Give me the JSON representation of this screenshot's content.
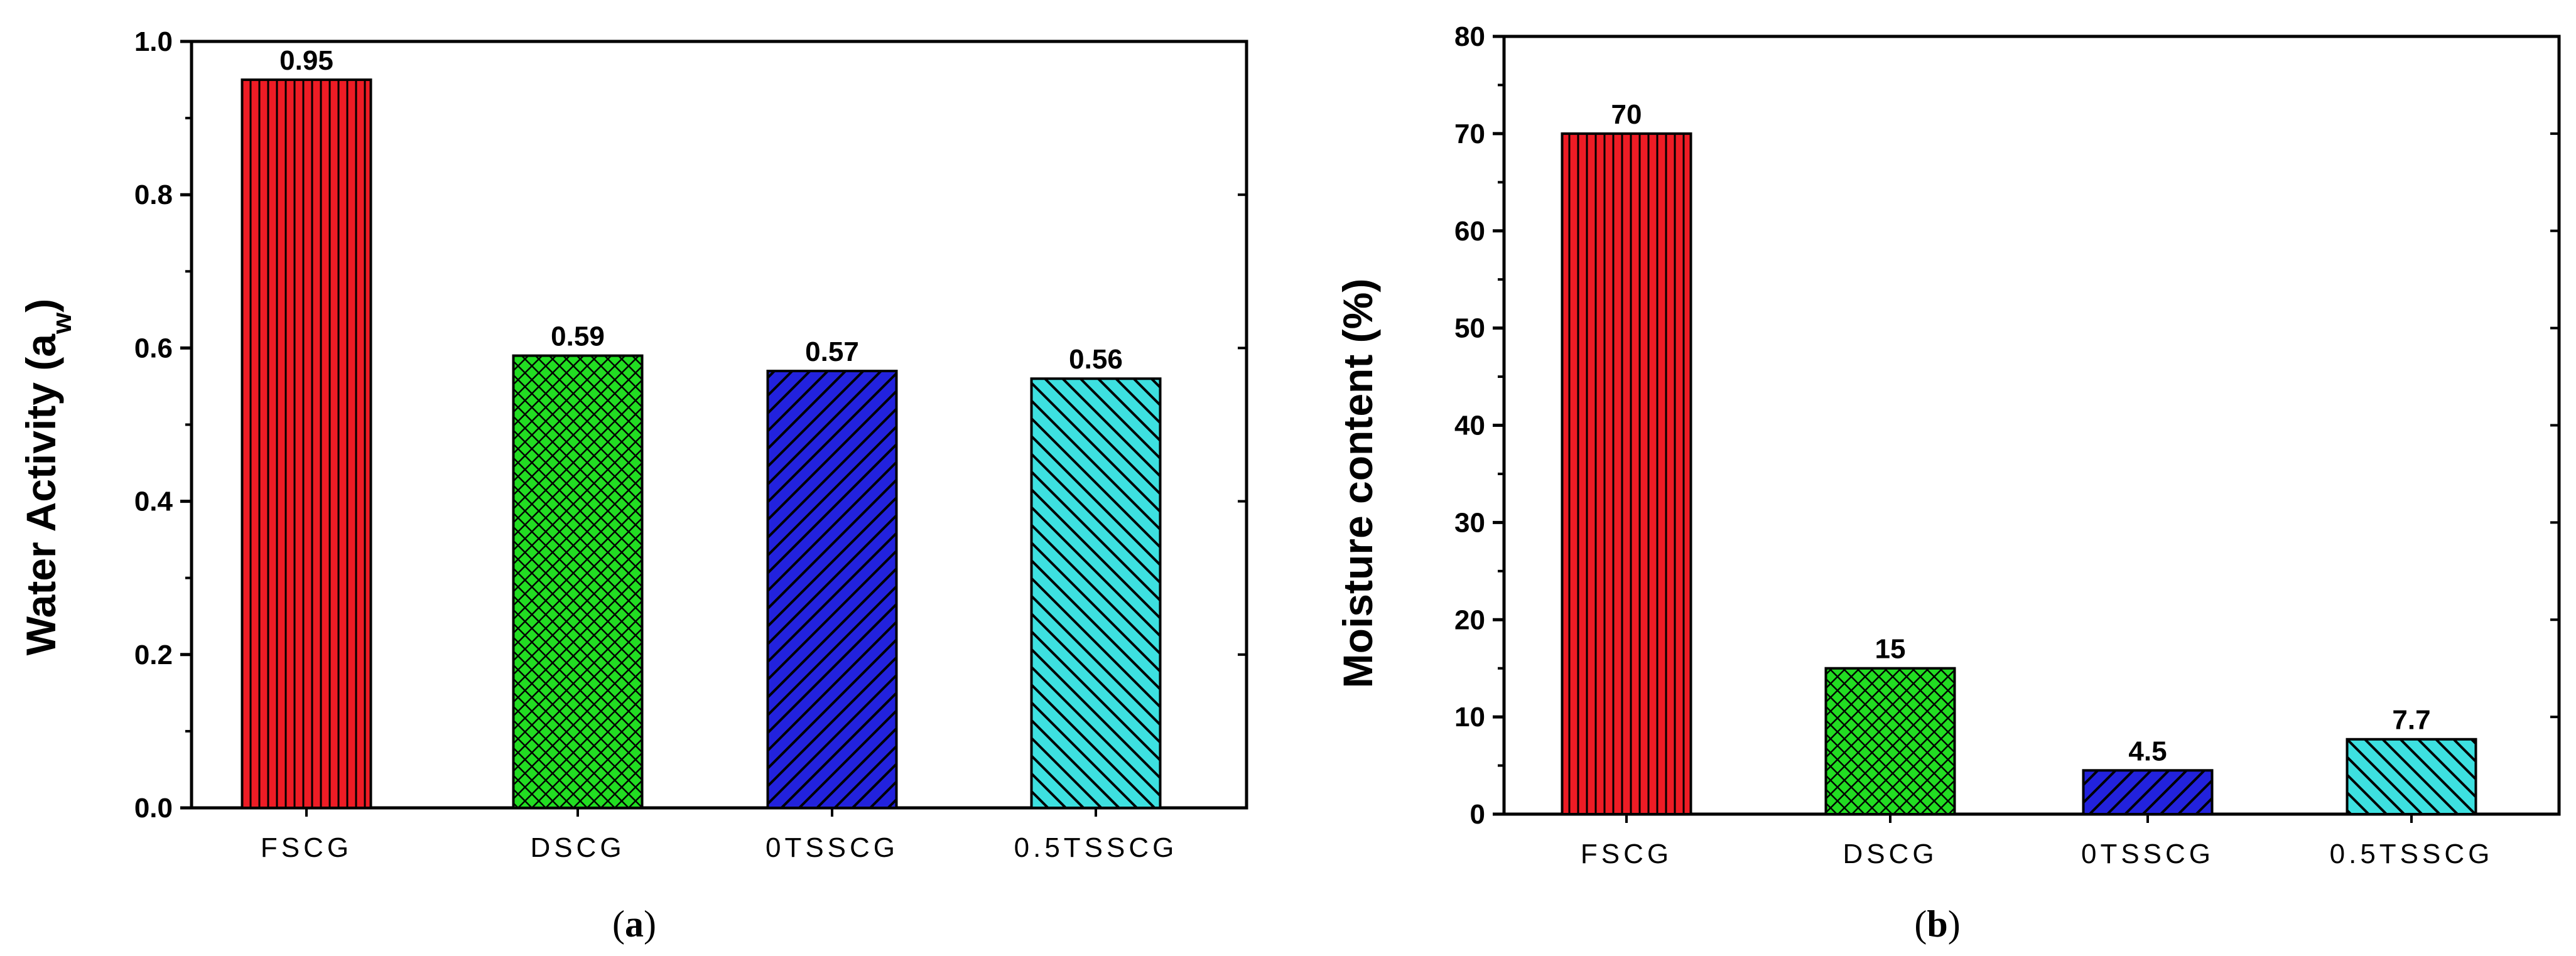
{
  "colors": {
    "FSCG": "#ee1c25",
    "DSCG": "#22dd22",
    "0TSSCG": "#2222dd",
    "0.5TSSCG": "#3de0e0"
  },
  "chart_data": [
    {
      "type": "bar",
      "panel": "(a)",
      "categories": [
        "FSCG",
        "DSCG",
        "0TSSCG",
        "0.5TSSCG"
      ],
      "values": [
        0.95,
        0.59,
        0.57,
        0.56
      ],
      "data_labels": [
        "0.95",
        "0.59",
        "0.57",
        "0.56"
      ],
      "patterns": [
        "vertical",
        "crosshatch",
        "diag-back",
        "diag-forward"
      ],
      "title": "",
      "xlabel": "",
      "ylabel": "Water Activity (a",
      "ylabel_sub": "w",
      "ylabel_suffix": ")",
      "ylim": [
        0,
        1.0
      ],
      "yticks": [
        "0.0",
        "0.2",
        "0.4",
        "0.6",
        "0.8",
        "1.0"
      ],
      "grid": false,
      "legend": "none"
    },
    {
      "type": "bar",
      "panel": "(b)",
      "categories": [
        "FSCG",
        "DSCG",
        "0TSSCG",
        "0.5TSSCG"
      ],
      "values": [
        70,
        15,
        4.5,
        7.7
      ],
      "data_labels": [
        "70",
        "15",
        "4.5",
        "7.7"
      ],
      "patterns": [
        "vertical",
        "crosshatch",
        "diag-back",
        "diag-forward"
      ],
      "title": "",
      "xlabel": "",
      "ylabel": "Moisture content (%)",
      "ylim": [
        0,
        80
      ],
      "yticks": [
        "0",
        "10",
        "20",
        "30",
        "40",
        "50",
        "60",
        "70",
        "80"
      ],
      "grid": false,
      "legend": "none"
    }
  ],
  "captions": {
    "a": {
      "open": "(",
      "letter": "a",
      "close": ")"
    },
    "b": {
      "open": "(",
      "letter": "b",
      "close": ")"
    }
  }
}
